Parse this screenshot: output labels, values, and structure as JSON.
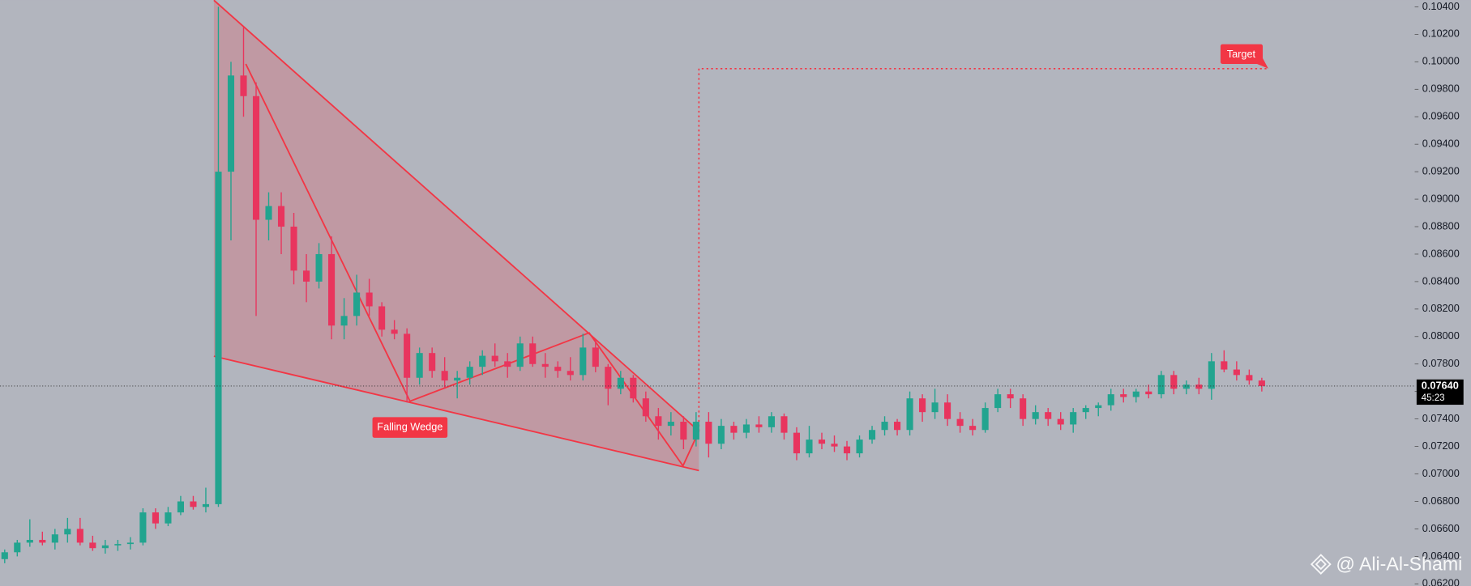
{
  "chart_data": {
    "type": "candlestick",
    "up_color": "#22a48f",
    "down_color": "#e8355e",
    "open": [
      0.0638,
      0.0643,
      0.065,
      0.0652,
      0.065,
      0.0656,
      0.066,
      0.065,
      0.0646,
      0.0648,
      0.0649,
      0.065,
      0.0672,
      0.0664,
      0.0672,
      0.068,
      0.0676,
      0.0678,
      0.092,
      0.099,
      0.0975,
      0.0885,
      0.0895,
      0.088,
      0.0848,
      0.084,
      0.086,
      0.0808,
      0.0815,
      0.0832,
      0.0822,
      0.0805,
      0.0802,
      0.077,
      0.0788,
      0.0775,
      0.0768,
      0.077,
      0.0778,
      0.0786,
      0.0782,
      0.0778,
      0.0795,
      0.078,
      0.0778,
      0.0775,
      0.0772,
      0.0792,
      0.0778,
      0.0762,
      0.077,
      0.0755,
      0.0742,
      0.0735,
      0.0738,
      0.0725,
      0.0738,
      0.0722,
      0.0735,
      0.073,
      0.0736,
      0.0734,
      0.0742,
      0.073,
      0.0715,
      0.0725,
      0.0722,
      0.072,
      0.0715,
      0.0725,
      0.0732,
      0.0738,
      0.0732,
      0.0755,
      0.0745,
      0.0752,
      0.074,
      0.0735,
      0.0732,
      0.0748,
      0.0758,
      0.0755,
      0.074,
      0.0745,
      0.074,
      0.0736,
      0.0745,
      0.0748,
      0.075,
      0.0758,
      0.0756,
      0.076,
      0.0758,
      0.0772,
      0.0762,
      0.0765,
      0.0762,
      0.0782,
      0.0776,
      0.0772,
      0.0768
    ],
    "high": [
      0.0645,
      0.0652,
      0.0667,
      0.0658,
      0.066,
      0.0668,
      0.0668,
      0.0655,
      0.0652,
      0.0652,
      0.0654,
      0.0675,
      0.0675,
      0.0676,
      0.0684,
      0.0684,
      0.069,
      0.104,
      0.1,
      0.1025,
      0.0985,
      0.0905,
      0.0905,
      0.089,
      0.086,
      0.0868,
      0.0873,
      0.0828,
      0.0845,
      0.0842,
      0.0825,
      0.0812,
      0.0806,
      0.0792,
      0.0792,
      0.0785,
      0.0775,
      0.0782,
      0.079,
      0.0795,
      0.0788,
      0.08,
      0.08,
      0.0788,
      0.0782,
      0.0785,
      0.0802,
      0.0798,
      0.078,
      0.0775,
      0.0772,
      0.076,
      0.0748,
      0.0745,
      0.0742,
      0.0745,
      0.0745,
      0.074,
      0.0738,
      0.074,
      0.0742,
      0.0745,
      0.0744,
      0.0734,
      0.0735,
      0.073,
      0.0728,
      0.0724,
      0.0728,
      0.0735,
      0.0742,
      0.074,
      0.076,
      0.0758,
      0.0762,
      0.0758,
      0.0745,
      0.074,
      0.0752,
      0.0762,
      0.0762,
      0.0758,
      0.075,
      0.0748,
      0.0745,
      0.0748,
      0.075,
      0.0752,
      0.0762,
      0.0762,
      0.0762,
      0.0765,
      0.0775,
      0.0775,
      0.0768,
      0.077,
      0.0788,
      0.079,
      0.0782,
      0.0776,
      0.077
    ],
    "low": [
      0.0635,
      0.064,
      0.0647,
      0.0648,
      0.0645,
      0.065,
      0.0648,
      0.0644,
      0.0642,
      0.0644,
      0.0645,
      0.0648,
      0.066,
      0.0662,
      0.067,
      0.0674,
      0.0672,
      0.0676,
      0.087,
      0.096,
      0.0815,
      0.087,
      0.086,
      0.0838,
      0.0825,
      0.0835,
      0.0798,
      0.0798,
      0.0808,
      0.0815,
      0.08,
      0.0798,
      0.0752,
      0.0765,
      0.077,
      0.0762,
      0.0755,
      0.0765,
      0.0772,
      0.0778,
      0.077,
      0.0775,
      0.0778,
      0.077,
      0.077,
      0.0768,
      0.0768,
      0.0774,
      0.075,
      0.0758,
      0.0752,
      0.0738,
      0.0725,
      0.0728,
      0.0718,
      0.072,
      0.0712,
      0.0718,
      0.0725,
      0.0726,
      0.073,
      0.073,
      0.0725,
      0.071,
      0.0712,
      0.0718,
      0.0716,
      0.071,
      0.0712,
      0.0722,
      0.0728,
      0.0728,
      0.0728,
      0.0738,
      0.074,
      0.0735,
      0.073,
      0.0728,
      0.073,
      0.0745,
      0.0748,
      0.0735,
      0.0736,
      0.0735,
      0.0732,
      0.073,
      0.074,
      0.0742,
      0.0746,
      0.0752,
      0.0752,
      0.0755,
      0.0755,
      0.0758,
      0.0758,
      0.0758,
      0.0754,
      0.0774,
      0.0768,
      0.0765,
      0.076
    ],
    "close": [
      0.0643,
      0.065,
      0.0652,
      0.065,
      0.0656,
      0.066,
      0.065,
      0.0646,
      0.0648,
      0.0649,
      0.065,
      0.0672,
      0.0664,
      0.0672,
      0.068,
      0.0676,
      0.0678,
      0.092,
      0.099,
      0.0975,
      0.0885,
      0.0895,
      0.088,
      0.0848,
      0.084,
      0.086,
      0.0808,
      0.0815,
      0.0832,
      0.0822,
      0.0805,
      0.0802,
      0.077,
      0.0788,
      0.0775,
      0.0768,
      0.077,
      0.0778,
      0.0786,
      0.0782,
      0.0778,
      0.0795,
      0.078,
      0.0778,
      0.0775,
      0.0772,
      0.0792,
      0.0778,
      0.0762,
      0.077,
      0.0755,
      0.0742,
      0.0735,
      0.0738,
      0.0725,
      0.0738,
      0.0722,
      0.0735,
      0.073,
      0.0736,
      0.0734,
      0.0742,
      0.073,
      0.0715,
      0.0725,
      0.0722,
      0.072,
      0.0715,
      0.0725,
      0.0732,
      0.0738,
      0.0732,
      0.0755,
      0.0745,
      0.0752,
      0.074,
      0.0735,
      0.0732,
      0.0748,
      0.0758,
      0.0755,
      0.074,
      0.0745,
      0.074,
      0.0736,
      0.0745,
      0.0748,
      0.075,
      0.0758,
      0.0756,
      0.076,
      0.0758,
      0.0772,
      0.0762,
      0.0765,
      0.0762,
      0.0782,
      0.0776,
      0.0772,
      0.0768,
      0.0764
    ],
    "ylim": [
      0.06186,
      0.10448
    ],
    "yticks": [
      {
        "value": 0.062,
        "label": "0.06200"
      },
      {
        "value": 0.064,
        "label": "0.06400"
      },
      {
        "value": 0.066,
        "label": "0.06600"
      },
      {
        "value": 0.068,
        "label": "0.06800"
      },
      {
        "value": 0.07,
        "label": "0.07000"
      },
      {
        "value": 0.072,
        "label": "0.07200"
      },
      {
        "value": 0.074,
        "label": "0.07400"
      },
      {
        "value": 0.076,
        "label": "0.07600"
      },
      {
        "value": 0.078,
        "label": "0.07800"
      },
      {
        "value": 0.08,
        "label": "0.08000"
      },
      {
        "value": 0.082,
        "label": "0.08200"
      },
      {
        "value": 0.084,
        "label": "0.08400"
      },
      {
        "value": 0.086,
        "label": "0.08600"
      },
      {
        "value": 0.088,
        "label": "0.08800"
      },
      {
        "value": 0.09,
        "label": "0.09000"
      },
      {
        "value": 0.092,
        "label": "0.09200"
      },
      {
        "value": 0.094,
        "label": "0.09400"
      },
      {
        "value": 0.096,
        "label": "0.09600"
      },
      {
        "value": 0.098,
        "label": "0.09800"
      },
      {
        "value": 0.1,
        "label": "0.10000"
      },
      {
        "value": 0.102,
        "label": "0.10200"
      },
      {
        "value": 0.104,
        "label": "0.10400"
      }
    ],
    "last_price": {
      "value": 0.0764,
      "label": "0.07640"
    },
    "countdown": "45:23",
    "pattern_label": "Falling Wedge",
    "target_label": "Target",
    "watermark": "@ Ali-Al-Shami"
  }
}
